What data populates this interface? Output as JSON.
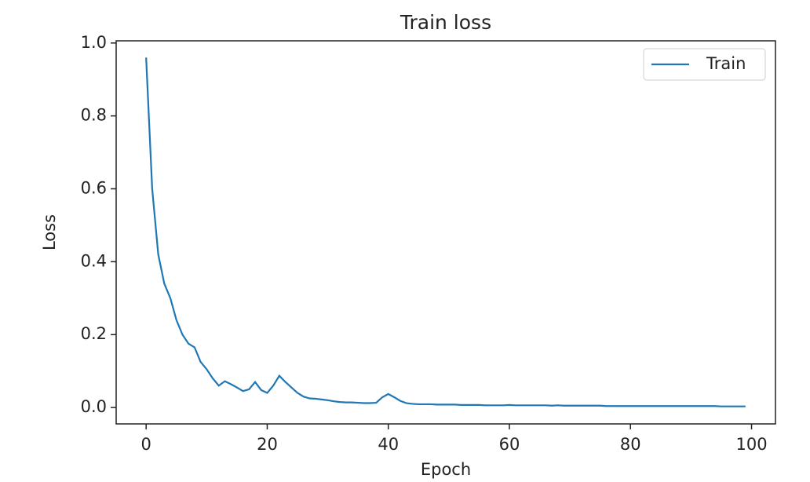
{
  "chart_data": {
    "type": "line",
    "title": "Train loss",
    "x_label": "Epoch",
    "y_label": "Loss",
    "x": [
      0,
      1,
      2,
      3,
      4,
      5,
      6,
      7,
      8,
      9,
      10,
      11,
      12,
      13,
      14,
      15,
      16,
      17,
      18,
      19,
      20,
      21,
      22,
      23,
      24,
      25,
      26,
      27,
      28,
      29,
      30,
      31,
      32,
      33,
      34,
      35,
      36,
      37,
      38,
      39,
      40,
      41,
      42,
      43,
      44,
      45,
      46,
      47,
      48,
      49,
      50,
      51,
      52,
      53,
      54,
      55,
      56,
      57,
      58,
      59,
      60,
      61,
      62,
      63,
      64,
      65,
      66,
      67,
      68,
      69,
      70,
      71,
      72,
      73,
      74,
      75,
      76,
      77,
      78,
      79,
      80,
      81,
      82,
      83,
      84,
      85,
      86,
      87,
      88,
      89,
      90,
      91,
      92,
      93,
      94,
      95,
      96,
      97,
      98,
      99
    ],
    "series": [
      {
        "name": "Train",
        "color": "#1f77b4",
        "values": [
          0.96,
          0.6,
          0.42,
          0.34,
          0.3,
          0.24,
          0.2,
          0.175,
          0.165,
          0.125,
          0.105,
          0.08,
          0.06,
          0.072,
          0.064,
          0.055,
          0.045,
          0.05,
          0.07,
          0.048,
          0.04,
          0.06,
          0.087,
          0.07,
          0.055,
          0.04,
          0.03,
          0.025,
          0.024,
          0.022,
          0.02,
          0.017,
          0.015,
          0.014,
          0.014,
          0.013,
          0.012,
          0.012,
          0.013,
          0.028,
          0.037,
          0.028,
          0.018,
          0.012,
          0.01,
          0.009,
          0.009,
          0.009,
          0.008,
          0.008,
          0.008,
          0.008,
          0.007,
          0.007,
          0.007,
          0.007,
          0.006,
          0.006,
          0.006,
          0.006,
          0.007,
          0.006,
          0.006,
          0.006,
          0.006,
          0.006,
          0.006,
          0.005,
          0.006,
          0.005,
          0.005,
          0.005,
          0.005,
          0.005,
          0.005,
          0.005,
          0.004,
          0.004,
          0.004,
          0.004,
          0.004,
          0.004,
          0.004,
          0.004,
          0.004,
          0.004,
          0.004,
          0.004,
          0.004,
          0.004,
          0.004,
          0.004,
          0.004,
          0.004,
          0.004,
          0.003,
          0.003,
          0.003,
          0.003,
          0.003
        ]
      }
    ],
    "xlim": [
      -4.95,
      103.95
    ],
    "ylim": [
      -0.045,
      1.006
    ],
    "xticks": [
      0,
      20,
      40,
      60,
      80,
      100
    ],
    "yticks": [
      {
        "value": 0,
        "label": "0.0"
      },
      {
        "value": 0.2,
        "label": "0.2"
      },
      {
        "value": 0.4,
        "label": "0.4"
      },
      {
        "value": 0.6,
        "label": "0.6"
      },
      {
        "value": 0.8,
        "label": "0.8"
      },
      {
        "value": 1,
        "label": "1.0"
      }
    ],
    "legend": "upper right",
    "grid": false
  }
}
